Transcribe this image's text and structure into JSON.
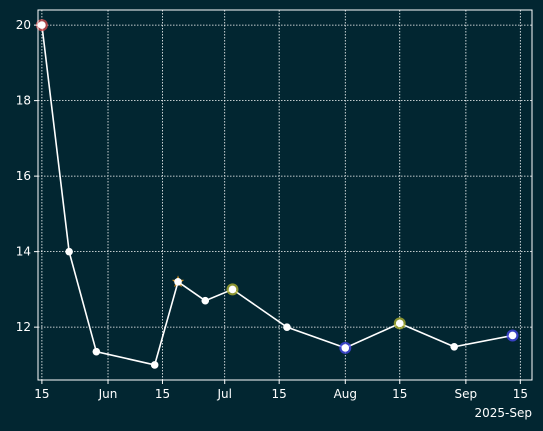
{
  "chart_data": {
    "type": "line",
    "title": "",
    "xlabel": "",
    "ylabel": "",
    "x_offset_label": "2025-Sep",
    "x_ticks": [
      "2025-05-15",
      "2025-06-01",
      "2025-06-15",
      "2025-07-01",
      "2025-07-15",
      "2025-08-01",
      "2025-08-15",
      "2025-09-01",
      "2025-09-15"
    ],
    "x_tick_labels": [
      "15",
      "Jun",
      "15",
      "Jul",
      "15",
      "Aug",
      "15",
      "Sep",
      "15"
    ],
    "y_ticks": [
      12,
      14,
      16,
      18,
      20
    ],
    "y_tick_labels": [
      "12",
      "14",
      "16",
      "18",
      "20"
    ],
    "xlim": [
      "2025-05-14",
      "2025-09-18"
    ],
    "ylim": [
      10.6,
      20.4
    ],
    "grid": true,
    "legend": "none",
    "colors": {
      "background": "#022631",
      "line": "#ffffff",
      "grid": "#ffffff",
      "marker": "#ffffff"
    },
    "series": [
      {
        "x": [
          "2025-05-15",
          "2025-05-22",
          "2025-05-29",
          "2025-06-13",
          "2025-06-19",
          "2025-06-26",
          "2025-07-03",
          "2025-07-17",
          "2025-08-01",
          "2025-08-15",
          "2025-08-29",
          "2025-09-13"
        ],
        "y": [
          20.0,
          14.0,
          11.35,
          11.0,
          13.2,
          12.7,
          13.0,
          12.0,
          11.45,
          12.1,
          11.48,
          11.78
        ],
        "highlights": [
          {
            "index": 0,
            "color": "#e05050",
            "shape": "circle"
          },
          {
            "index": 4,
            "color": "#f0a020",
            "shape": "star"
          },
          {
            "index": 6,
            "color": "#b8b830",
            "shape": "circle"
          },
          {
            "index": 8,
            "color": "#4a4af0",
            "shape": "circle"
          },
          {
            "index": 9,
            "color": "#b8b830",
            "shape": "circle"
          },
          {
            "index": 11,
            "color": "#4a4af0",
            "shape": "circle"
          }
        ]
      }
    ]
  }
}
